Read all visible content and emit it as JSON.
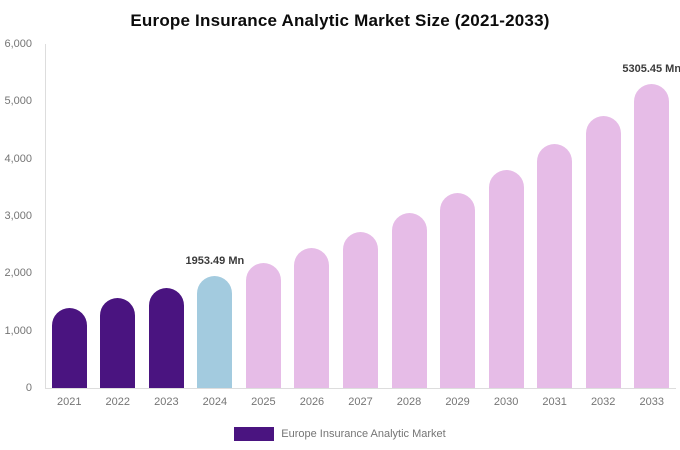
{
  "chart_data": {
    "type": "bar",
    "title": "Europe Insurance Analytic Market Size (2021-2033)",
    "categories": [
      "2021",
      "2022",
      "2023",
      "2024",
      "2025",
      "2026",
      "2027",
      "2028",
      "2029",
      "2030",
      "2031",
      "2032",
      "2033"
    ],
    "values": [
      1400,
      1565,
      1748,
      1953.49,
      2183,
      2439,
      2726,
      3046,
      3404,
      3804,
      4250,
      4748,
      5305.45
    ],
    "value_unit": "Mn",
    "data_labels": [
      {
        "category": "2024",
        "text": "1953.49 Mn"
      },
      {
        "category": "2033",
        "text": "5305.45 Mn"
      }
    ],
    "ylim": [
      0,
      6000
    ],
    "ytick_step": 1000,
    "ytick_labels": [
      "0",
      "1,000",
      "2,000",
      "3,000",
      "4,000",
      "5,000",
      "6,000"
    ],
    "grid": false,
    "legend": {
      "position": "bottom",
      "label": "Europe Insurance Analytic Market",
      "swatch_color": "#4a1480"
    },
    "bar_colors": [
      "#4a1480",
      "#4a1480",
      "#4a1480",
      "#a3cbdf",
      "#e6bce7",
      "#e6bce7",
      "#e6bce7",
      "#e6bce7",
      "#e6bce7",
      "#e6bce7",
      "#e6bce7",
      "#e6bce7",
      "#e6bce7"
    ],
    "colors": {
      "historical_bar": "#4a1480",
      "current_year_bar": "#a3cbdf",
      "forecast_bar": "#e6bce7",
      "axis_line": "#dddddd",
      "tick_text": "#757575",
      "data_label_text": "#3b3b3b",
      "title_text": "#0b0b0b"
    }
  }
}
